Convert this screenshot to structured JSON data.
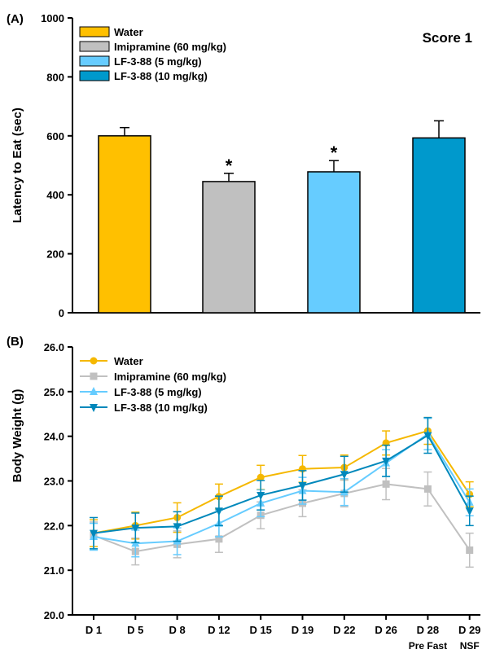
{
  "chart_data": [
    {
      "type": "bar",
      "panel_label": "(A)",
      "annotation": "Score 1",
      "ylabel": "Latency to Eat (sec)",
      "xlabel": "",
      "ylim": [
        0,
        1000
      ],
      "yticks": [
        0,
        200,
        400,
        600,
        800,
        1000
      ],
      "legend_position": "top-left",
      "bars": [
        {
          "name": "Water",
          "value": 600,
          "error": 28,
          "significant": false,
          "color": "#FFC000"
        },
        {
          "name": "Imipramine (60 mg/kg)",
          "value": 445,
          "error": 28,
          "significant": true,
          "color": "#C0C0C0"
        },
        {
          "name": "LF-3-88  (5 mg/kg)",
          "value": 478,
          "error": 38,
          "significant": true,
          "color": "#66CCFF"
        },
        {
          "name": "LF-3-88  (10 mg/kg)",
          "value": 593,
          "error": 58,
          "significant": false,
          "color": "#0099CC"
        }
      ],
      "significance_marker": "*"
    },
    {
      "type": "line",
      "panel_label": "(B)",
      "ylabel": "Body Weight (g)",
      "xlabel": "",
      "ylim": [
        20.0,
        26.0
      ],
      "yticks": [
        "20.0",
        "21.0",
        "22.0",
        "23.0",
        "24.0",
        "25.0",
        "26.0"
      ],
      "categories": [
        "D 1",
        "D 5",
        "D 8",
        "D 12",
        "D 15",
        "D 19",
        "D 22",
        "D 26",
        "D 28",
        "D 29"
      ],
      "sublabels": [
        "",
        "",
        "",
        "",
        "",
        "",
        "",
        "",
        "Pre Fast",
        "NSF"
      ],
      "legend_position": "top-left",
      "series": [
        {
          "name": "Water",
          "color": "#F5B800",
          "marker": "circle",
          "values": [
            21.83,
            22.0,
            22.18,
            22.65,
            23.08,
            23.27,
            23.3,
            23.85,
            24.12,
            22.7
          ],
          "errors": [
            0.3,
            0.3,
            0.33,
            0.28,
            0.27,
            0.3,
            0.28,
            0.27,
            0.3,
            0.28
          ]
        },
        {
          "name": "Imipramine (60 mg/kg)",
          "color": "#C0C0C0",
          "marker": "square",
          "values": [
            21.78,
            21.42,
            21.58,
            21.7,
            22.23,
            22.5,
            22.72,
            22.93,
            22.82,
            21.45
          ],
          "errors": [
            0.3,
            0.3,
            0.3,
            0.3,
            0.3,
            0.3,
            0.3,
            0.35,
            0.38,
            0.38
          ]
        },
        {
          "name": "LF-3-88 (5 mg/kg)",
          "color": "#66CCFF",
          "marker": "triangle-up",
          "values": [
            21.75,
            21.6,
            21.65,
            22.05,
            22.5,
            22.78,
            22.75,
            23.4,
            24.05,
            22.52
          ],
          "errors": [
            0.3,
            0.3,
            0.3,
            0.3,
            0.3,
            0.3,
            0.3,
            0.3,
            0.35,
            0.3
          ]
        },
        {
          "name": "LF-3-88 (10 mg/kg)",
          "color": "#0088BB",
          "marker": "triangle-down",
          "values": [
            21.83,
            21.95,
            21.98,
            22.33,
            22.68,
            22.9,
            23.15,
            23.45,
            24.02,
            22.33
          ],
          "errors": [
            0.35,
            0.33,
            0.33,
            0.33,
            0.33,
            0.33,
            0.4,
            0.35,
            0.4,
            0.33
          ]
        }
      ]
    }
  ]
}
